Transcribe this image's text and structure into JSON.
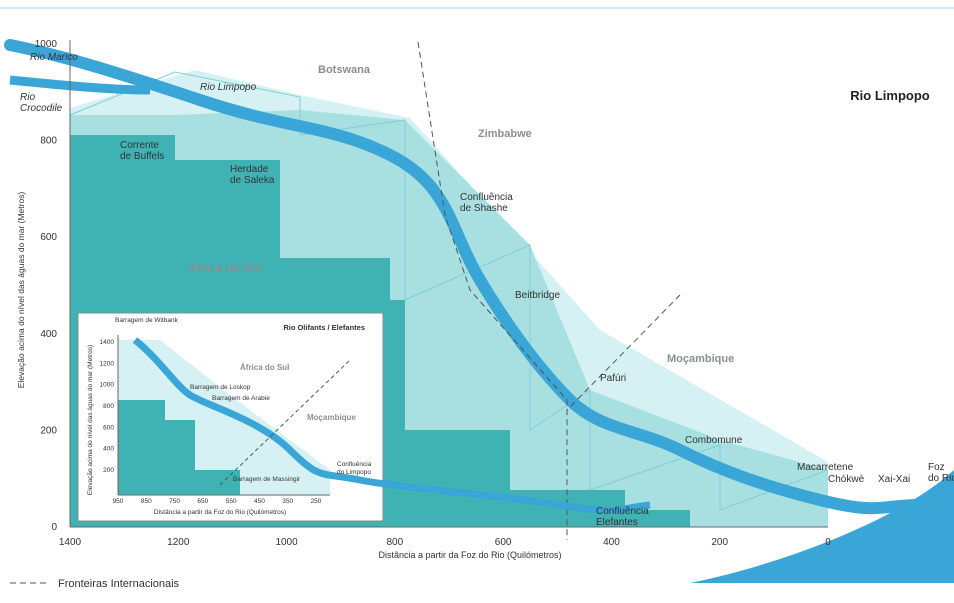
{
  "title": "Rio Limpopo",
  "y_axis": {
    "label": "Elevação acima do nível das águas do mar (Metros)",
    "ticks": [
      0,
      200,
      400,
      600,
      800,
      1000
    ]
  },
  "x_axis": {
    "label": "Distância a partir da Foz  do Rio (Quilómetros)",
    "ticks": [
      1400,
      1200,
      1000,
      800,
      600,
      400,
      200,
      0
    ]
  },
  "countries": [
    "Botswana",
    "Zimbabwe",
    "África do Sul",
    "Moçambique"
  ],
  "places": [
    [
      "Rio Marico"
    ],
    [
      "Rio",
      "Crocodile"
    ],
    [
      "Rio Limpopo"
    ],
    [
      "Corrente",
      "de Buffels"
    ],
    [
      "Herdade",
      "de Saleka"
    ],
    [
      "Confluência",
      "de Shashe"
    ],
    [
      "Beitbridge"
    ],
    [
      "Pafúri"
    ],
    [
      "Combomune"
    ],
    [
      "Macarretene"
    ],
    [
      "Chókwè"
    ],
    [
      "Xai-Xai"
    ],
    [
      "Foz",
      "do Rio"
    ],
    [
      "Confluência",
      "Elefantes"
    ]
  ],
  "legend": "Fronteiras Internacionais",
  "inset": {
    "title": "Rio Olifants / Elefantes",
    "y_axis": {
      "label": "Elevação acima do nível das águas do mar (Metros)",
      "ticks": [
        1400,
        1200,
        1000,
        800,
        600,
        400,
        200
      ]
    },
    "x_axis": {
      "label": "Distância a partir da Foz do Rio (Quilómetros)",
      "ticks": [
        950,
        850,
        750,
        650,
        550,
        450,
        350,
        250
      ]
    },
    "countries": [
      "África do Sul",
      "Moçambique"
    ],
    "places": [
      [
        "Barragem de Witbank"
      ],
      [
        "Barragem de Loskop"
      ],
      [
        "Barragem de Arabie"
      ],
      [
        "Barragem de Massingir"
      ],
      [
        "Confluência",
        "do Limpopo"
      ]
    ]
  }
}
